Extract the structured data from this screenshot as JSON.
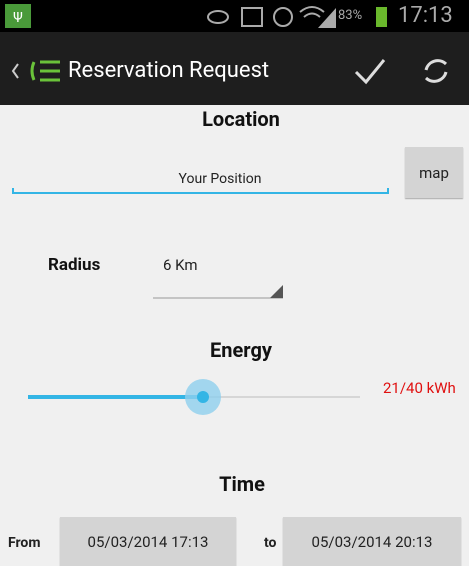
{
  "status_bar": {
    "battery": "83%",
    "time": "17:13"
  },
  "action_bar": {
    "title": "Reservation Request"
  },
  "location": {
    "heading": "Location",
    "field": "Your Position",
    "button": "map"
  },
  "radius": {
    "label": "Radius",
    "value": "6 Km"
  },
  "energy": {
    "heading": "Energy",
    "value": "21/40 kWh"
  },
  "time": {
    "heading": "Time",
    "from_label": "From",
    "from_value": "05/03/2014 17:13",
    "to_label": "to",
    "to_value": "05/03/2014 20:13"
  }
}
